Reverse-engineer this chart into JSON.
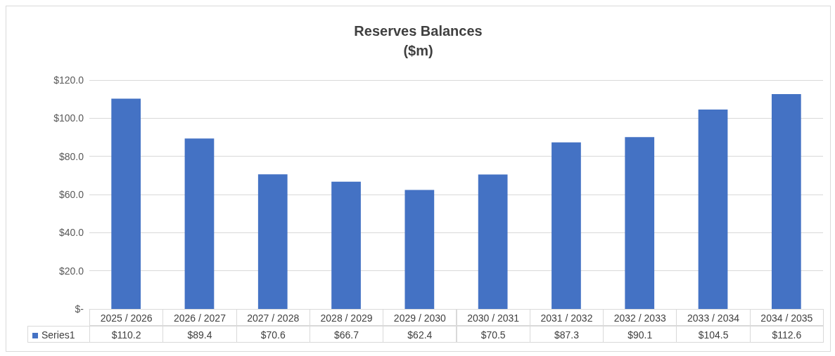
{
  "chart_data": {
    "type": "bar",
    "title": "Reserves Balances",
    "subtitle": "($m)",
    "categories": [
      "2025 / 2026",
      "2026 / 2027",
      "2027 / 2028",
      "2028 / 2029",
      "2029 / 2030",
      "2030 / 2031",
      "2031 / 2032",
      "2032 / 2033",
      "2033 / 2034",
      "2034 / 2035"
    ],
    "series": [
      {
        "name": "Series1",
        "color": "#4472c4",
        "values": [
          110.2,
          89.4,
          70.6,
          66.7,
          62.4,
          70.5,
          87.3,
          90.1,
          104.5,
          112.6
        ],
        "value_labels": [
          "$110.2",
          "$89.4",
          "$70.6",
          "$66.7",
          "$62.4",
          "$70.5",
          "$87.3",
          "$90.1",
          "$104.5",
          "$112.6"
        ]
      }
    ],
    "ylim": [
      0,
      120
    ],
    "yticks": [
      {
        "value": 0,
        "label": "$-"
      },
      {
        "value": 20,
        "label": "$20.0"
      },
      {
        "value": 40,
        "label": "$40.0"
      },
      {
        "value": 60,
        "label": "$60.0"
      },
      {
        "value": 80,
        "label": "$80.0"
      },
      {
        "value": 100,
        "label": "$100.0"
      },
      {
        "value": 120,
        "label": "$120.0"
      }
    ],
    "grid": "y",
    "legend": "bottom left"
  }
}
